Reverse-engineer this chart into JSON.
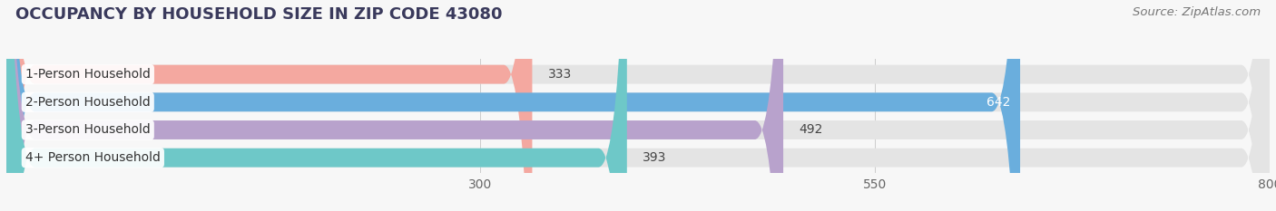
{
  "title": "OCCUPANCY BY HOUSEHOLD SIZE IN ZIP CODE 43080",
  "source": "Source: ZipAtlas.com",
  "categories": [
    "1-Person Household",
    "2-Person Household",
    "3-Person Household",
    "4+ Person Household"
  ],
  "values": [
    333,
    642,
    492,
    393
  ],
  "bar_colors": [
    "#f4a8a0",
    "#6aaedd",
    "#b8a2cc",
    "#6ec8c8"
  ],
  "label_colors": [
    "#555555",
    "#ffffff",
    "#555555",
    "#555555"
  ],
  "xlim": [
    0,
    800
  ],
  "xticks": [
    300,
    550,
    800
  ],
  "bg_color": "#f7f7f7",
  "bar_bg_color": "#e4e4e4",
  "row_bg_color": "#efefef",
  "title_fontsize": 13,
  "source_fontsize": 9.5,
  "tick_fontsize": 10,
  "bar_label_fontsize": 10,
  "category_fontsize": 10
}
